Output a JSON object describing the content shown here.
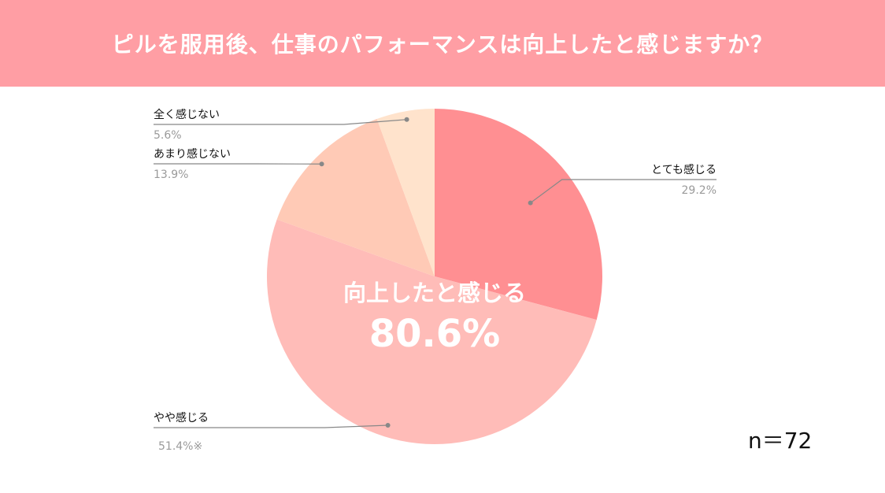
{
  "header": {
    "title": "ピルを服用後、仕事のパフォーマンスは向上したと感じますか？",
    "background": "#ff9ea4"
  },
  "chart_data": {
    "type": "pie",
    "title": "ピルを服用後、仕事のパフォーマンスは向上したと感じますか？",
    "slices": [
      {
        "label": "とても感じる",
        "value": 29.2,
        "value_label": "29.2%",
        "color": "#ff8f92"
      },
      {
        "label": "やや感じる",
        "value": 51.4,
        "value_label": "51.4%※",
        "color": "#ffbcb8"
      },
      {
        "label": "あまり感じない",
        "value": 13.9,
        "value_label": "13.9%",
        "color": "#ffcab6"
      },
      {
        "label": "全く感じない",
        "value": 5.6,
        "value_label": "5.6%",
        "color": "#ffe3cc"
      }
    ],
    "center_label": "向上したと感じる",
    "center_value": "80.6%",
    "start_angle": "12 o'clock",
    "direction": "clockwise",
    "legend": "callout-labels"
  },
  "sample_size": "n＝72"
}
